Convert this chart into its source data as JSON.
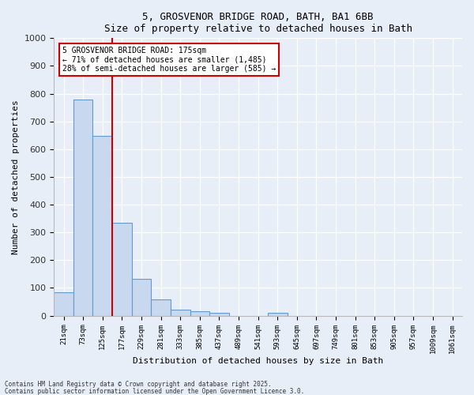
{
  "title1": "5, GROSVENOR BRIDGE ROAD, BATH, BA1 6BB",
  "title2": "Size of property relative to detached houses in Bath",
  "xlabel": "Distribution of detached houses by size in Bath",
  "ylabel": "Number of detached properties",
  "bar_color": "#c8d8ee",
  "bar_edge_color": "#6699cc",
  "background_color": "#e8eef8",
  "vline_color": "#cc0000",
  "annotation_line1": "5 GROSVENOR BRIDGE ROAD: 175sqm",
  "annotation_line2": "← 71% of detached houses are smaller (1,485)",
  "annotation_line3": "28% of semi-detached houses are larger (585) →",
  "annotation_box_edgecolor": "#cc0000",
  "bin_labels": [
    "21sqm",
    "73sqm",
    "125sqm",
    "177sqm",
    "229sqm",
    "281sqm",
    "333sqm",
    "385sqm",
    "437sqm",
    "489sqm",
    "541sqm",
    "593sqm",
    "645sqm",
    "697sqm",
    "749sqm",
    "801sqm",
    "853sqm",
    "905sqm",
    "957sqm",
    "1009sqm",
    "1061sqm"
  ],
  "bar_heights": [
    83,
    780,
    648,
    335,
    133,
    58,
    22,
    17,
    10,
    0,
    0,
    10,
    0,
    0,
    0,
    0,
    0,
    0,
    0,
    0,
    0
  ],
  "ylim": [
    0,
    1000
  ],
  "yticks": [
    0,
    100,
    200,
    300,
    400,
    500,
    600,
    700,
    800,
    900,
    1000
  ],
  "vline_index": 2.5,
  "footnote1": "Contains HM Land Registry data © Crown copyright and database right 2025.",
  "footnote2": "Contains public sector information licensed under the Open Government Licence 3.0."
}
